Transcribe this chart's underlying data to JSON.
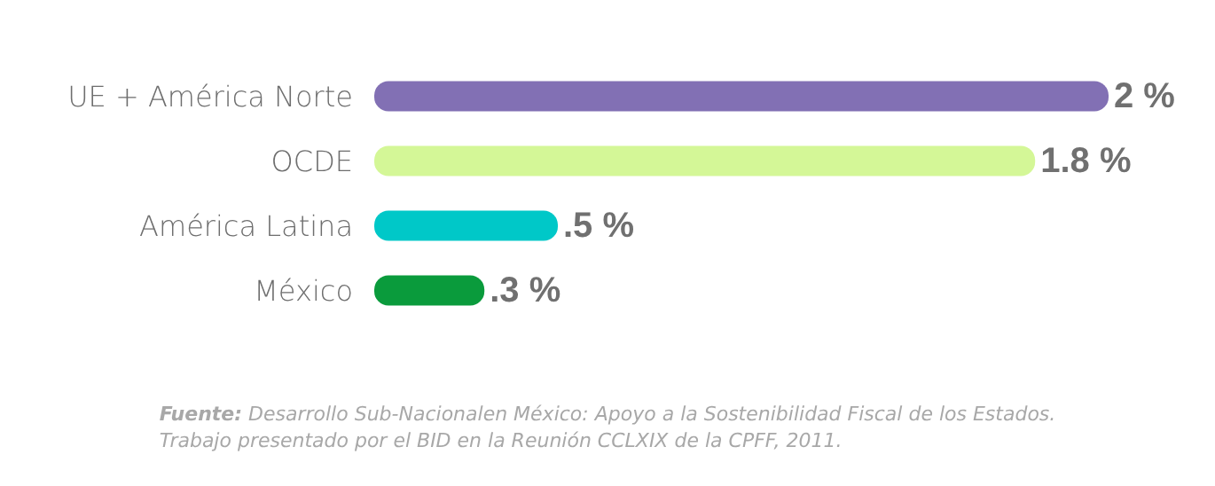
{
  "chart_data": {
    "type": "bar",
    "orientation": "horizontal",
    "categories": [
      "UE + América Norte",
      "OCDE",
      "América Latina",
      "México"
    ],
    "values": [
      2,
      1.8,
      0.5,
      0.3
    ],
    "colors": [
      "#8270b4",
      "#d4f797",
      "#00c8c8",
      "#0a9b3c"
    ],
    "value_labels": [
      "2 %",
      "1.8 %",
      ".5 %",
      ".3 %"
    ],
    "annotations": [
      "Fuente: Desarrollo Sub-Nacionalen México: Apoyo a la Sostenibilidad Fiscal de los Estados.\nTrabajo presentado por el BID en la Reunión CCLXIX de la CPFF, 2011."
    ]
  }
}
